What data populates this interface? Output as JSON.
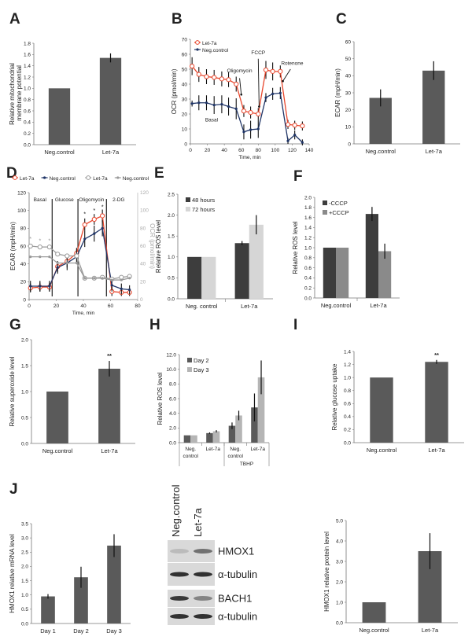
{
  "colors": {
    "bar": "#5a5a5a",
    "bar_dark": "#3d3d3d",
    "bar_light": "#d6d6d6",
    "bar_mid": "#8a8a8a",
    "let7a_line": "#e8462c",
    "neg_line": "#1f3466",
    "ocr_grey": "#9a9a9a"
  },
  "chart_data": [
    {
      "id": "A",
      "letter": "A",
      "type": "bar",
      "categories": [
        "Neg.control",
        "Let-7a"
      ],
      "series": [
        {
          "values": [
            1.0,
            1.54
          ],
          "errors": [
            0,
            0.08
          ]
        }
      ],
      "ylim": [
        0,
        1.8
      ],
      "ystep": 0.2,
      "ydecimals": 1,
      "ylabel": "Relative mitochondrial membrane potential",
      "xlabel": ""
    },
    {
      "id": "B",
      "letter": "B",
      "type": "line",
      "x": [
        2,
        10,
        19,
        28,
        37,
        45,
        54,
        63,
        71,
        80,
        89,
        97,
        106,
        115,
        123,
        132
      ],
      "series": [
        {
          "name": "Let-7a",
          "marker": "open-circle",
          "values": [
            52,
            46.5,
            45,
            44.5,
            43.5,
            43,
            40,
            22,
            21,
            20,
            49.5,
            48.5,
            48.5,
            13,
            12.5,
            12
          ],
          "errors": [
            6,
            5,
            5,
            5,
            5,
            5,
            5,
            4,
            4,
            4,
            6,
            6,
            4,
            3,
            3,
            3
          ]
        },
        {
          "name": "Neg.control",
          "marker": "dot",
          "values": [
            27,
            27.5,
            27.5,
            26,
            26.5,
            25,
            23.5,
            8,
            9.5,
            10,
            31,
            33.5,
            34,
            2,
            6,
            1
          ],
          "errors": [
            2,
            5,
            5,
            6,
            6,
            6,
            7,
            5,
            6,
            6,
            3,
            4,
            4,
            2,
            3,
            2
          ]
        }
      ],
      "xlim": [
        0,
        140
      ],
      "xstep": 20,
      "ylim": [
        0,
        70
      ],
      "ystep": 10,
      "ydecimals": 0,
      "ylabel": "OCR (pmol/min)",
      "xlabel": "Time, min",
      "legend": "top-left",
      "annotations": [
        {
          "text": "Oligomycin",
          "x": 58,
          "y": 48
        },
        {
          "text": "FCCP",
          "x": 80,
          "y": 60
        },
        {
          "text": "Rotenone",
          "x": 120,
          "y": 53
        },
        {
          "text": "Basal",
          "x": 25,
          "y": 15
        }
      ]
    },
    {
      "id": "C",
      "letter": "C",
      "type": "bar",
      "categories": [
        "Neg.control",
        "Let-7a"
      ],
      "series": [
        {
          "values": [
            27,
            43
          ],
          "errors": [
            5,
            5.5
          ]
        }
      ],
      "ylim": [
        0,
        60
      ],
      "ystep": 10,
      "ydecimals": 0,
      "ylabel": "ECAR (mpH/min)",
      "xlabel": ""
    },
    {
      "id": "D",
      "letter": "D",
      "type": "line",
      "x": [
        1,
        8,
        15,
        21,
        28,
        35,
        41,
        48,
        54,
        61,
        68,
        74
      ],
      "series": [
        {
          "name": "Let-7a",
          "axis": "left",
          "marker": "open-circle",
          "values": [
            13,
            14,
            14,
            37,
            43,
            52,
            84,
            90,
            94,
            9,
            8,
            8
          ],
          "errors": [
            5,
            5,
            5,
            6,
            7,
            6,
            7,
            6,
            7,
            5,
            4,
            4
          ]
        },
        {
          "name": "Neg.control",
          "axis": "left",
          "marker": "dot",
          "values": [
            15,
            15,
            15,
            36,
            41,
            48,
            68,
            74,
            80,
            16,
            12,
            11
          ],
          "errors": [
            6,
            6,
            6,
            7,
            8,
            8,
            9,
            9,
            9,
            7,
            6,
            5
          ]
        },
        {
          "name": "Let-7a",
          "axis": "right",
          "marker": "open-circle",
          "values": [
            60,
            59,
            59,
            51,
            49,
            49,
            24,
            24,
            25,
            23,
            25,
            26
          ],
          "errors": [
            0,
            0,
            0,
            0,
            0,
            0,
            0,
            0,
            0,
            0,
            0,
            0
          ]
        },
        {
          "name": "Neg.control",
          "axis": "right",
          "marker": "dot",
          "values": [
            48,
            48,
            48,
            41,
            41,
            41,
            24,
            24,
            24,
            22,
            22,
            24
          ],
          "errors": [
            0,
            0,
            0,
            0,
            0,
            0,
            0,
            0,
            0,
            0,
            0,
            0
          ]
        }
      ],
      "xlim": [
        0,
        80
      ],
      "xstep": 20,
      "ylim": [
        0,
        120
      ],
      "ystep": 20,
      "ydecimals": 0,
      "y2lim": [
        0,
        120
      ],
      "ylabel": "ECAR (mpH/min)",
      "y2label": "OCR (pmol/min)",
      "xlabel": "Time, min",
      "legend": "top",
      "phases": [
        {
          "text": "Basal",
          "x": 8
        },
        {
          "text": "Glucose",
          "x": 26
        },
        {
          "text": "Oligomycin",
          "x": 46
        },
        {
          "text": "2-DG",
          "x": 66
        }
      ],
      "phase_dividers": [
        17,
        36,
        57
      ],
      "asterisks": [
        {
          "x": 1,
          "y": 66,
          "gray": true
        },
        {
          "x": 8,
          "y": 64,
          "gray": true
        },
        {
          "x": 15,
          "y": 64,
          "gray": true
        },
        {
          "x": 41,
          "y": 94
        },
        {
          "x": 48,
          "y": 98
        },
        {
          "x": 54,
          "y": 102
        }
      ]
    },
    {
      "id": "E",
      "letter": "E",
      "type": "bar",
      "categories": [
        "Neg. control",
        "Let-7a"
      ],
      "series": [
        {
          "name": "48 hours",
          "values": [
            1,
            1.33
          ],
          "errors": [
            0,
            0.05
          ]
        },
        {
          "name": "72 hours",
          "values": [
            1,
            1.77
          ],
          "errors": [
            0,
            0.23
          ]
        }
      ],
      "ylim": [
        0,
        2.5
      ],
      "ystep": 0.5,
      "ydecimals": 1,
      "ylabel": "Relative ROS level",
      "xlabel": "",
      "legend": "top-left"
    },
    {
      "id": "F",
      "letter": "F",
      "type": "bar",
      "categories": [
        "Neg.control",
        "Let-7a"
      ],
      "series": [
        {
          "name": "-CCCP",
          "values": [
            1,
            1.67
          ],
          "errors": [
            0,
            0.14
          ]
        },
        {
          "name": "+CCCP",
          "values": [
            1,
            0.93
          ],
          "errors": [
            0,
            0.15
          ]
        }
      ],
      "ylim": [
        0,
        2.0
      ],
      "ystep": 0.2,
      "ydecimals": 1,
      "ylabel": "Relative ROS level",
      "xlabel": "",
      "legend": "top-left"
    },
    {
      "id": "G",
      "letter": "G",
      "type": "bar",
      "categories": [
        "Neg.control",
        "Let-7a"
      ],
      "series": [
        {
          "values": [
            1,
            1.44
          ],
          "errors": [
            0,
            0.15
          ]
        }
      ],
      "ylim": [
        0,
        2.0
      ],
      "ystep": 0.5,
      "ydecimals": 1,
      "ylabel": "Relative superoxide level",
      "xlabel": "",
      "significance": [
        "",
        "**"
      ]
    },
    {
      "id": "H",
      "letter": "H",
      "type": "bar",
      "categories": [
        "Neg. control",
        "Let-7a",
        "Neg. control",
        "Let-7a"
      ],
      "groups": [
        {
          "label": "",
          "span": [
            0,
            1
          ]
        },
        {
          "label": "TBHP",
          "span": [
            2,
            3
          ]
        }
      ],
      "series": [
        {
          "name": "Day 2",
          "values": [
            1,
            1.3,
            2.3,
            4.8
          ],
          "errors": [
            0,
            0.1,
            0.45,
            1.9
          ]
        },
        {
          "name": "Day 3",
          "values": [
            1,
            1.55,
            3.7,
            8.9
          ],
          "errors": [
            0,
            0.15,
            0.65,
            2.3
          ]
        }
      ],
      "ylim": [
        0,
        12
      ],
      "ystep": 2,
      "ydecimals": 1,
      "ylabel": "Relative ROS level",
      "xlabel": "",
      "legend": "top-left"
    },
    {
      "id": "I",
      "letter": "I",
      "type": "bar",
      "categories": [
        "Neg.control",
        "Let-7a"
      ],
      "series": [
        {
          "values": [
            1,
            1.24
          ],
          "errors": [
            0,
            0.03
          ]
        }
      ],
      "ylim": [
        0,
        1.4
      ],
      "ystep": 0.2,
      "ydecimals": 1,
      "ylabel": "Relative glucose uptake",
      "xlabel": "",
      "significance": [
        "",
        "**"
      ]
    },
    {
      "id": "J",
      "letter": "J",
      "type": "bar",
      "categories": [
        "Day 1",
        "Day 2",
        "Day 3"
      ],
      "series": [
        {
          "values": [
            0.95,
            1.62,
            2.73
          ],
          "errors": [
            0.08,
            0.37,
            0.4
          ]
        }
      ],
      "ylim": [
        0,
        3.5
      ],
      "ystep": 0.5,
      "ydecimals": 1,
      "ylabel": "HMOX1 relative mRNA level",
      "xlabel": ""
    },
    {
      "id": "K",
      "letter": "",
      "type": "bar",
      "categories": [
        "Neg.control",
        "Let-7a"
      ],
      "series": [
        {
          "values": [
            1,
            3.5
          ],
          "errors": [
            0,
            0.88
          ]
        }
      ],
      "ylim": [
        0,
        5
      ],
      "ystep": 1,
      "ydecimals": 1,
      "ylabel": "HMOX1 relative protein level",
      "xlabel": ""
    }
  ],
  "blot": {
    "lanes": [
      "Neg.control",
      "Let-7a"
    ],
    "bands": [
      {
        "label": "HMOX1",
        "intensity": [
          0.15,
          0.55
        ]
      },
      {
        "label": "α-tubulin",
        "intensity": [
          0.9,
          0.9
        ]
      },
      {
        "label": "BACH1",
        "intensity": [
          0.85,
          0.45
        ]
      },
      {
        "label": "α-tubulin",
        "intensity": [
          0.9,
          0.9
        ]
      }
    ]
  }
}
